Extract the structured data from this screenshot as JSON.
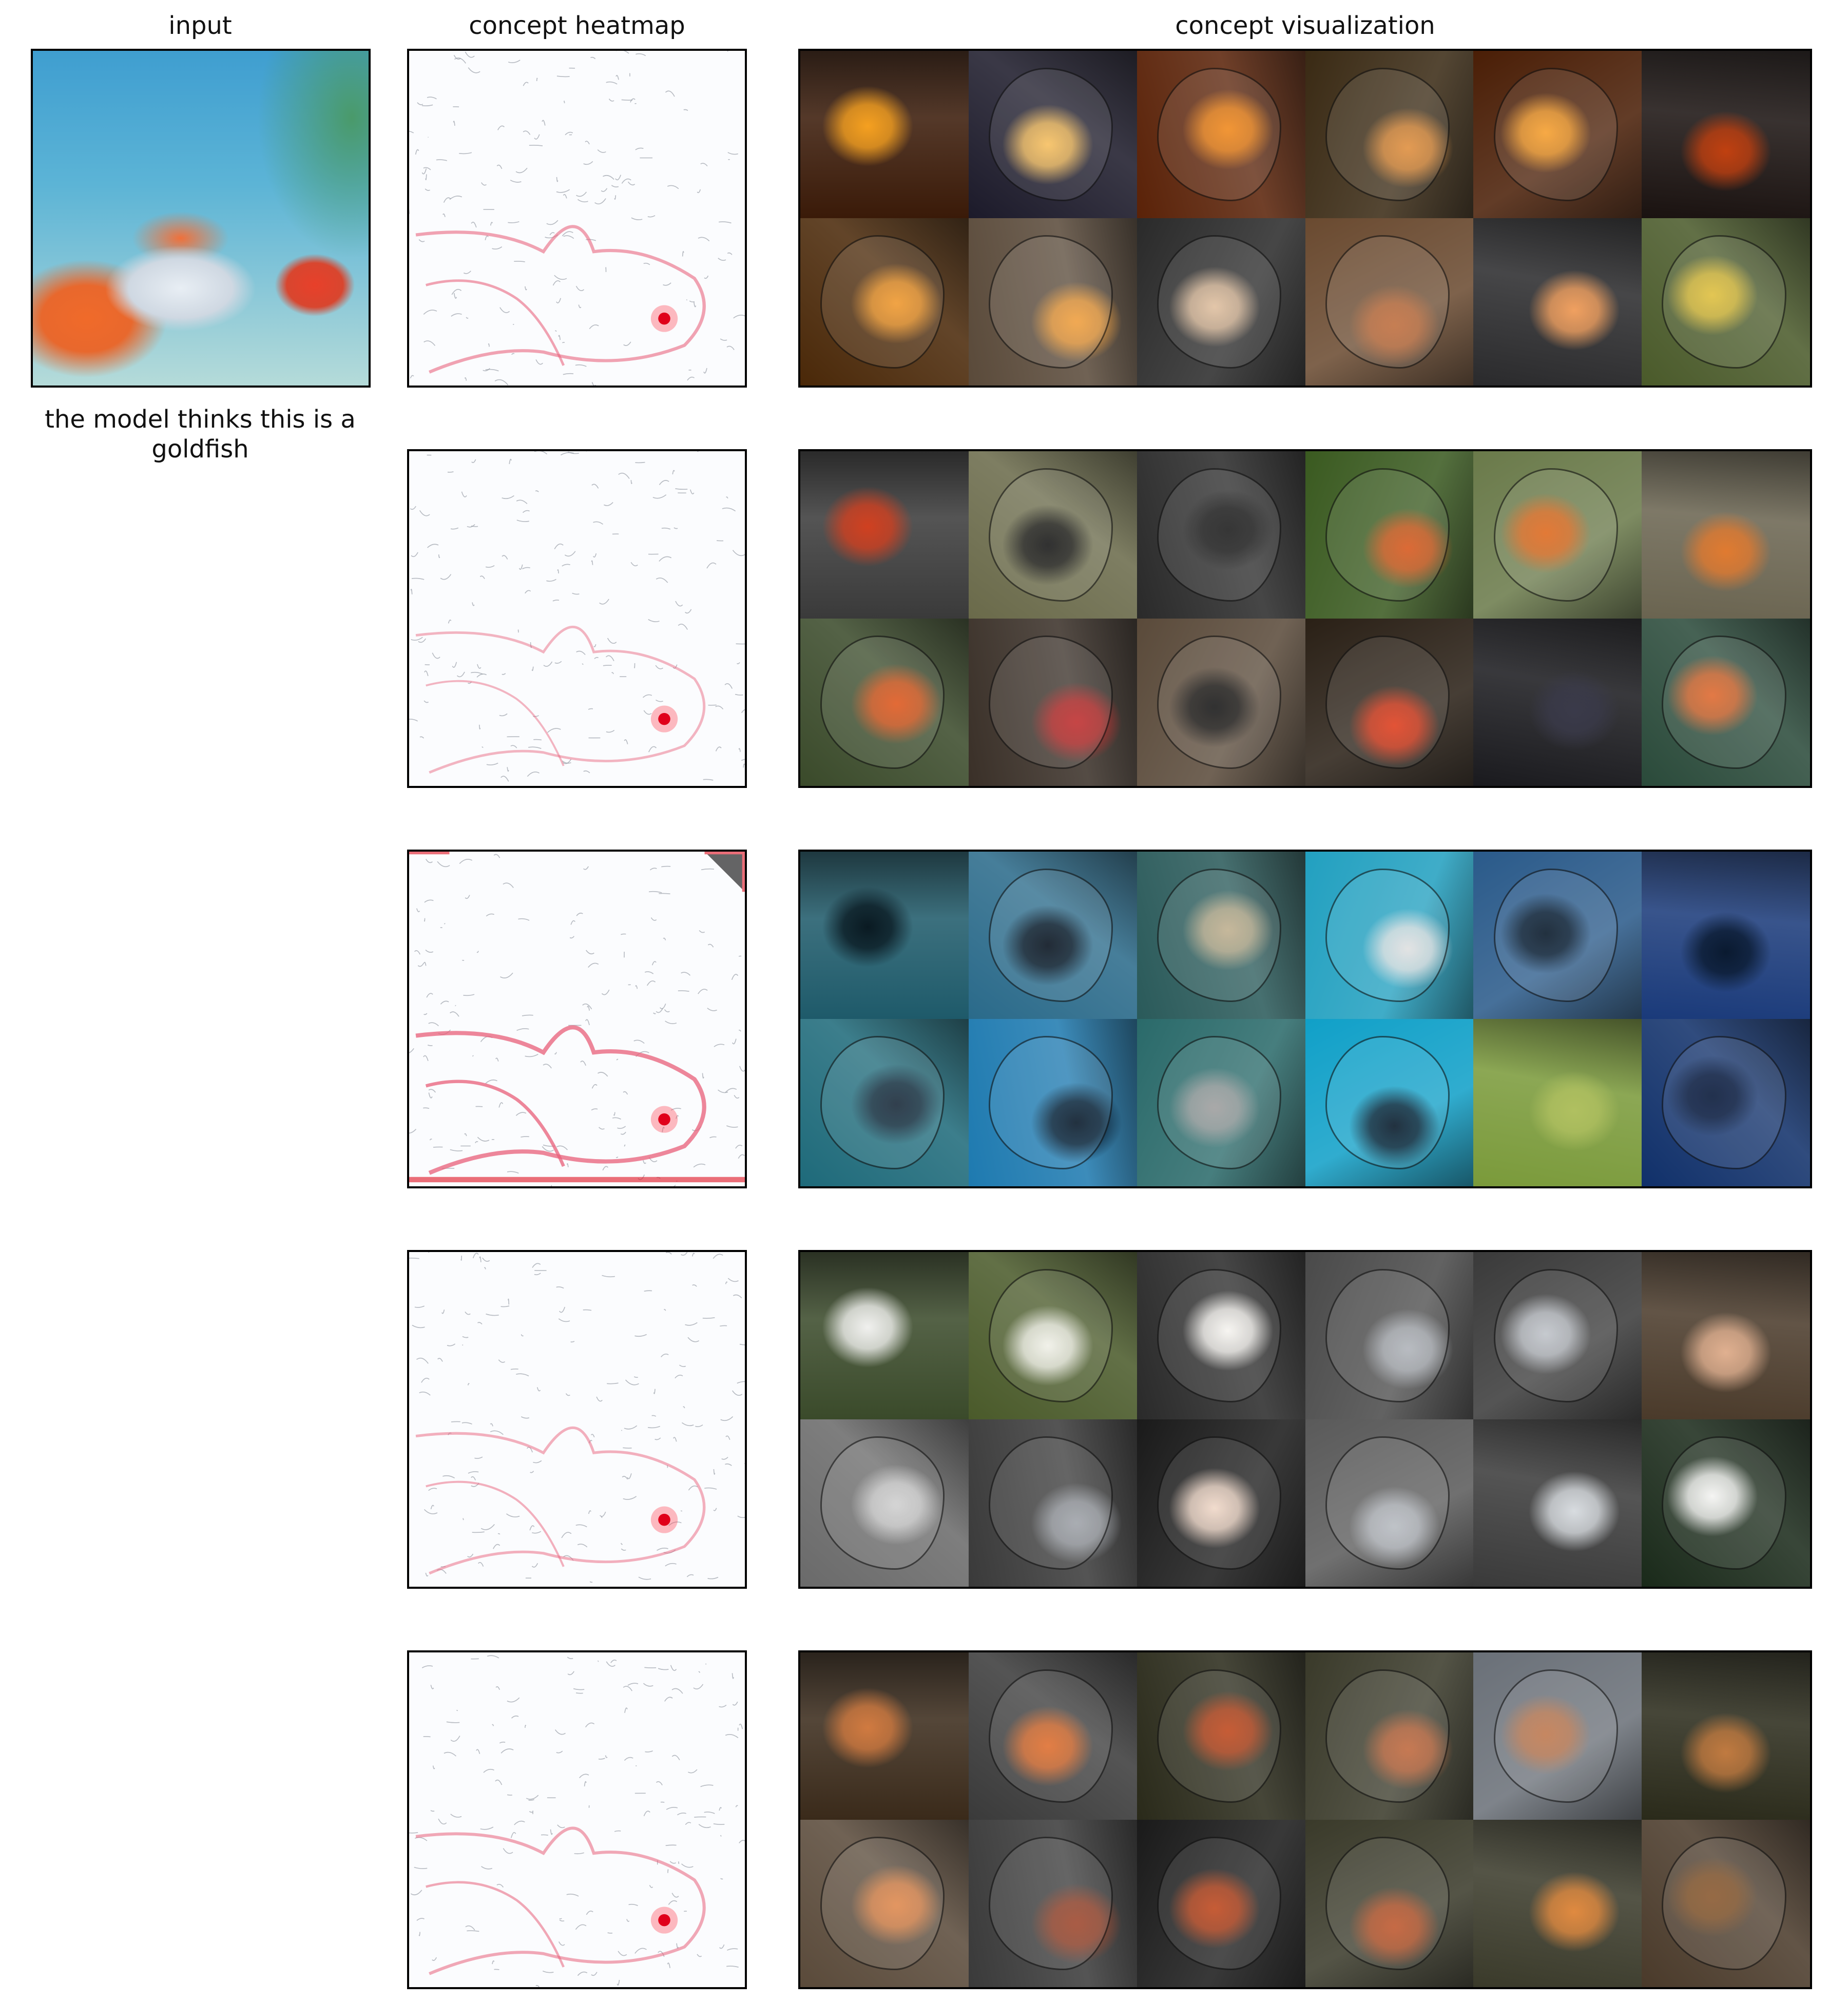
{
  "headers": {
    "input": "input",
    "heatmap": "concept heatmap",
    "visualization": "concept visualization"
  },
  "caption": "the model thinks this is a goldfish",
  "rows": [
    {
      "heat_strength": 0.55,
      "cells": [
        "#3a1a08",
        "#1c1a2a",
        "#5a2208",
        "#3a2a14",
        "#4a1e06",
        "#1a1210",
        "#4a2808",
        "#5a4a3a",
        "#2a2a2a",
        "#6a4a30",
        "#2a2a2c",
        "#4a5a2a"
      ],
      "accents": [
        "#f5a020",
        "#f7c060",
        "#f08a20",
        "#e09040",
        "#f6a030",
        "#c04010",
        "#f09a30",
        "#f0a040",
        "#e0c0a0",
        "#c07040",
        "#f0a060",
        "#e0c040"
      ]
    },
    {
      "heat_strength": 0.35,
      "cells": [
        "#3a3a3a",
        "#6a6a4a",
        "#2a2a2a",
        "#3a5a20",
        "#6a7a4a",
        "#6a6450",
        "#3a4a2a",
        "#3a3028",
        "#5a4a3a",
        "#2a2016",
        "#1a1a1e",
        "#2a4a3a"
      ],
      "accents": [
        "#d04020",
        "#1a1a1a",
        "#202020",
        "#d85a20",
        "#e06a20",
        "#e07a30",
        "#e05a20",
        "#c03030",
        "#1a1a1a",
        "#e04020",
        "#3a3a4a",
        "#e06a30"
      ]
    },
    {
      "heat_strength": 0.85,
      "cells": [
        "#1e5a6a",
        "#2a6a8a",
        "#2a5a5a",
        "#22a0c0",
        "#2a5a8a",
        "#1a3a7a",
        "#1e6a7a",
        "#1e7ab0",
        "#2a6a6a",
        "#10a0c8",
        "#7a9a3a",
        "#10306a"
      ],
      "accents": [
        "#0a1a22",
        "#0a1420",
        "#c0b090",
        "#e0e0e0",
        "#0a1a2a",
        "#0a1a30",
        "#1a2a3a",
        "#0a1a2a",
        "#a0a0a0",
        "#0a1a2a",
        "#b0c060",
        "#0a1a3a"
      ]
    },
    {
      "heat_strength": 0.4,
      "cells": [
        "#3a4a2a",
        "#4a5a2a",
        "#2a2a2a",
        "#4a4a4a",
        "#3a3a3a",
        "#4a3a2a",
        "#6a6a6a",
        "#3a3a3a",
        "#1a1a1a",
        "#5a5a5a",
        "#3a3a3a",
        "#1a2a1a"
      ],
      "accents": [
        "#f0f0ee",
        "#f0f0e8",
        "#f6f4f0",
        "#b0b4ba",
        "#c0c4ca",
        "#e0b090",
        "#d0d0d0",
        "#a0a4aa",
        "#f0d8c8",
        "#b8bcc2",
        "#d8dce0",
        "#f4f4f2"
      ]
    },
    {
      "heat_strength": 0.5,
      "cells": [
        "#3a2a1a",
        "#3a3a3a",
        "#2a2a1a",
        "#3a3a2a",
        "#6a7078",
        "#2a2a1a",
        "#5a4a3a",
        "#3a3a3a",
        "#1a1a1a",
        "#3a3a2a",
        "#3a3a2a",
        "#4a3a2a"
      ],
      "accents": [
        "#d07a40",
        "#e07030",
        "#c04a20",
        "#c06a40",
        "#c07a50",
        "#c07a40",
        "#e08a50",
        "#a04a30",
        "#c04a20",
        "#c05a30",
        "#e08a40",
        "#8a5a30"
      ]
    }
  ]
}
